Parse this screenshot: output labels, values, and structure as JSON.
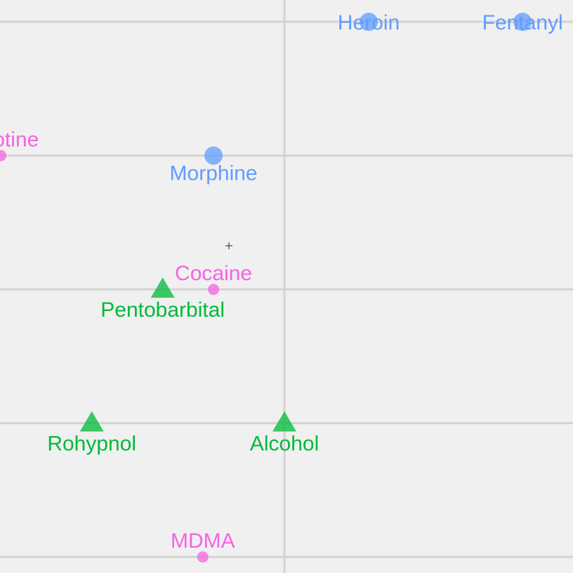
{
  "chart_data": {
    "type": "scatter",
    "xlim": [
      -2.126,
      2.157
    ],
    "ylim": [
      -2.12,
      2.163
    ],
    "xticks": [
      0
    ],
    "yticks": [
      -2,
      -1,
      0,
      1,
      2
    ],
    "tick_labels": false,
    "grid": true,
    "series": [
      {
        "color": "#619cff",
        "marker": "circle",
        "size": 13,
        "labels": [
          "Heroin",
          "Fentanyl",
          "Morphine"
        ],
        "x": [
          0.63,
          1.78,
          -0.53
        ],
        "values": [
          2,
          2,
          1
        ]
      },
      {
        "color": "#f564e3",
        "marker": "circle",
        "size": 8,
        "labels": [
          "Nicotine",
          "Cocaine",
          "MDMA"
        ],
        "x": [
          -2.12,
          -0.53,
          -0.61
        ],
        "values": [
          1,
          0,
          -2
        ]
      },
      {
        "color": "#00ba38",
        "marker": "triangle",
        "size": 17,
        "labels": [
          "Pentobarbital",
          "Rohypnol",
          "Alcohol"
        ],
        "x": [
          -0.91,
          -1.44,
          0
        ],
        "values": [
          0,
          -1,
          -1
        ]
      }
    ]
  }
}
